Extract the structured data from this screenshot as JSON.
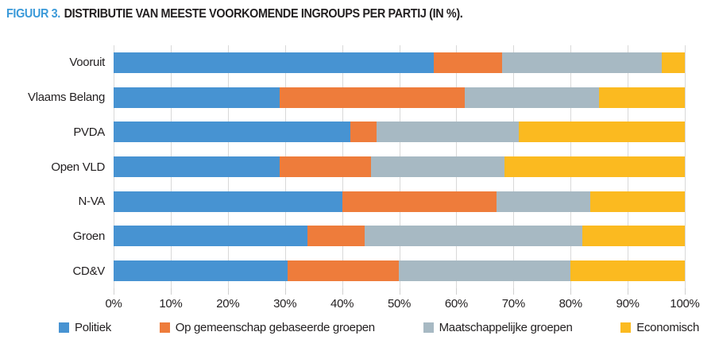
{
  "chart_data": {
    "type": "bar",
    "stacked": true,
    "orientation": "horizontal",
    "title_prefix": "FIGUUR 3.",
    "title": "DISTRIBUTIE VAN MEESTE VOORKOMENDE INGROUPS PER PARTIJ (IN %).",
    "categories": [
      "Vooruit",
      "Vlaams Belang",
      "PVDA",
      "Open VLD",
      "N-VA",
      "Groen",
      "CD&V"
    ],
    "series": [
      {
        "name": "Politiek",
        "color": "#4793d2",
        "values": [
          56,
          29,
          41.5,
          29,
          40,
          34,
          30.5
        ]
      },
      {
        "name": "Op gemeenschap gebaseerde groepen",
        "color": "#ee7c3b",
        "values": [
          12,
          32.5,
          4.5,
          16,
          27,
          10,
          19.5
        ]
      },
      {
        "name": "Maatschappelijke groepen",
        "color": "#a7b9c3",
        "values": [
          28,
          23.5,
          25,
          23.5,
          16.5,
          38,
          30
        ]
      },
      {
        "name": "Economisch",
        "color": "#fbba20",
        "values": [
          4,
          15,
          29,
          31.5,
          16.5,
          18,
          20
        ]
      }
    ],
    "x_ticks": [
      "0%",
      "10%",
      "20%",
      "30%",
      "40%",
      "50%",
      "60%",
      "70%",
      "80%",
      "90%",
      "100%"
    ],
    "xlim": [
      0,
      100
    ],
    "grid": "vertical",
    "gridline_color": "#d9d9d9",
    "legend_position": "bottom",
    "title_prefix_color": "#3b9ad9",
    "text_color": "#221f20"
  }
}
